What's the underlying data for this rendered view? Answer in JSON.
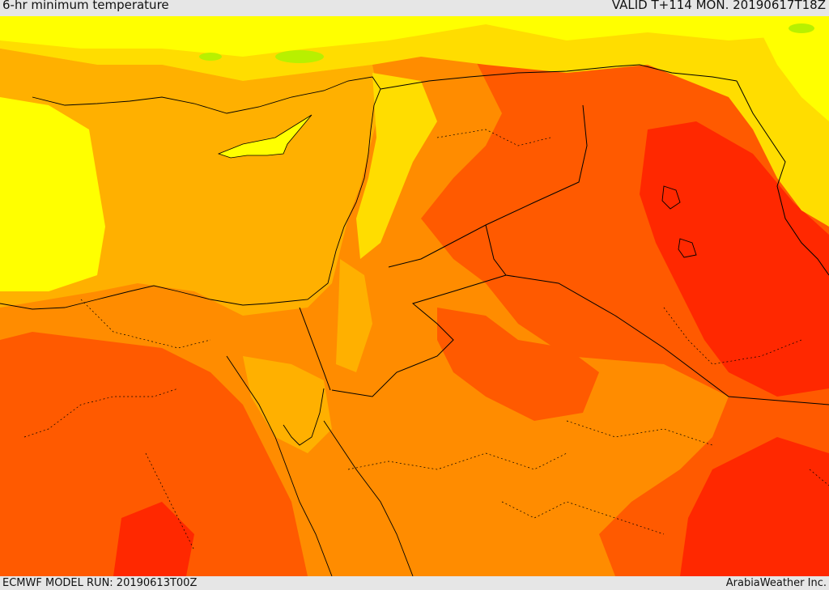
{
  "header": {
    "title": "6-hr minimum temperature",
    "valid": "VALID T+114 MON. 20190617T18Z"
  },
  "footer": {
    "model_run": "ECMWF MODEL RUN: 20190613T00Z",
    "credit": "ArabiaWeather Inc."
  },
  "palette": {
    "light_green": "#b8f000",
    "yellow": "#ffff00",
    "yellow_orange": "#ffdd00",
    "light_orange": "#ffb000",
    "orange": "#ff8c00",
    "dark_orange": "#ff5a00",
    "red": "#ff2800",
    "border_color": "#000000"
  }
}
